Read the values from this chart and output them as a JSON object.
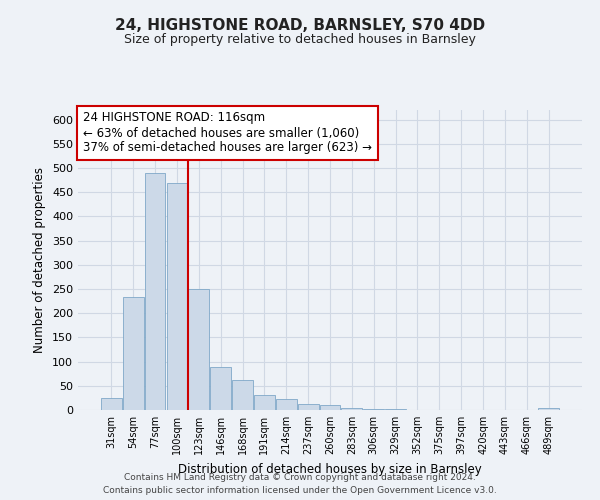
{
  "title": "24, HIGHSTONE ROAD, BARNSLEY, S70 4DD",
  "subtitle": "Size of property relative to detached houses in Barnsley",
  "xlabel": "Distribution of detached houses by size in Barnsley",
  "ylabel": "Number of detached properties",
  "bar_color": "#ccd9e8",
  "bar_edge_color": "#7fa8c8",
  "categories": [
    "31sqm",
    "54sqm",
    "77sqm",
    "100sqm",
    "123sqm",
    "146sqm",
    "168sqm",
    "191sqm",
    "214sqm",
    "237sqm",
    "260sqm",
    "283sqm",
    "306sqm",
    "329sqm",
    "352sqm",
    "375sqm",
    "397sqm",
    "420sqm",
    "443sqm",
    "466sqm",
    "489sqm"
  ],
  "values": [
    25,
    233,
    490,
    470,
    250,
    88,
    63,
    30,
    22,
    13,
    10,
    5,
    3,
    2,
    1,
    1,
    1,
    1,
    0,
    0,
    5
  ],
  "ylim": [
    0,
    620
  ],
  "yticks": [
    0,
    50,
    100,
    150,
    200,
    250,
    300,
    350,
    400,
    450,
    500,
    550,
    600
  ],
  "vline_x_index": 3.5,
  "vline_color": "#cc0000",
  "annotation_title": "24 HIGHSTONE ROAD: 116sqm",
  "annotation_line1": "← 63% of detached houses are smaller (1,060)",
  "annotation_line2": "37% of semi-detached houses are larger (623) →",
  "annotation_box_color": "#cc0000",
  "footer_line1": "Contains HM Land Registry data © Crown copyright and database right 2024.",
  "footer_line2": "Contains public sector information licensed under the Open Government Licence v3.0.",
  "bg_color": "#eef2f7",
  "grid_color": "#d0d8e4"
}
